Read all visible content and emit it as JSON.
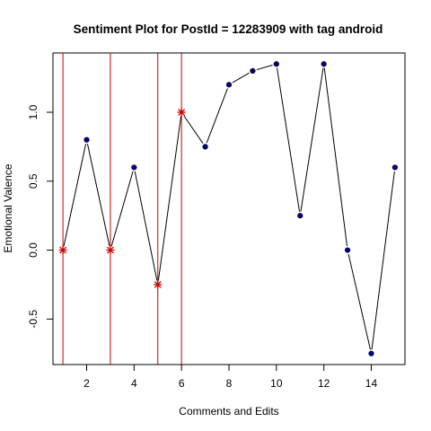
{
  "chart_data": {
    "type": "line",
    "title": "Sentiment Plot for PostId =  12283909  with tag  android",
    "xlabel": "Comments and Edits",
    "ylabel": "Emotional Valence",
    "xlim": [
      0.58,
      15.42
    ],
    "ylim": [
      -0.83,
      1.43
    ],
    "x_ticks": [
      2,
      4,
      6,
      8,
      10,
      12,
      14
    ],
    "x_tick_labels": [
      "2",
      "4",
      "6",
      "8",
      "10",
      "12",
      "14"
    ],
    "y_ticks": [
      -0.5,
      0.0,
      0.5,
      1.0
    ],
    "y_tick_labels": [
      "-0.5",
      "0.0",
      "0.5",
      "1.0"
    ],
    "grid": false,
    "x": [
      1,
      2,
      3,
      4,
      5,
      6,
      7,
      8,
      9,
      10,
      11,
      12,
      13,
      14,
      15
    ],
    "y": [
      0.0,
      0.8,
      0.0,
      0.6,
      -0.25,
      1.0,
      0.75,
      1.2,
      1.3,
      1.35,
      0.25,
      1.35,
      0.0,
      -0.75,
      0.6
    ],
    "highlighted_x": [
      1,
      3,
      5,
      6
    ],
    "vertical_lines_x": [
      1,
      3,
      5,
      6
    ],
    "colors": {
      "line": "#000000",
      "point": "#00008b",
      "highlight": "#cc0000",
      "vline": "#cc0000"
    }
  }
}
